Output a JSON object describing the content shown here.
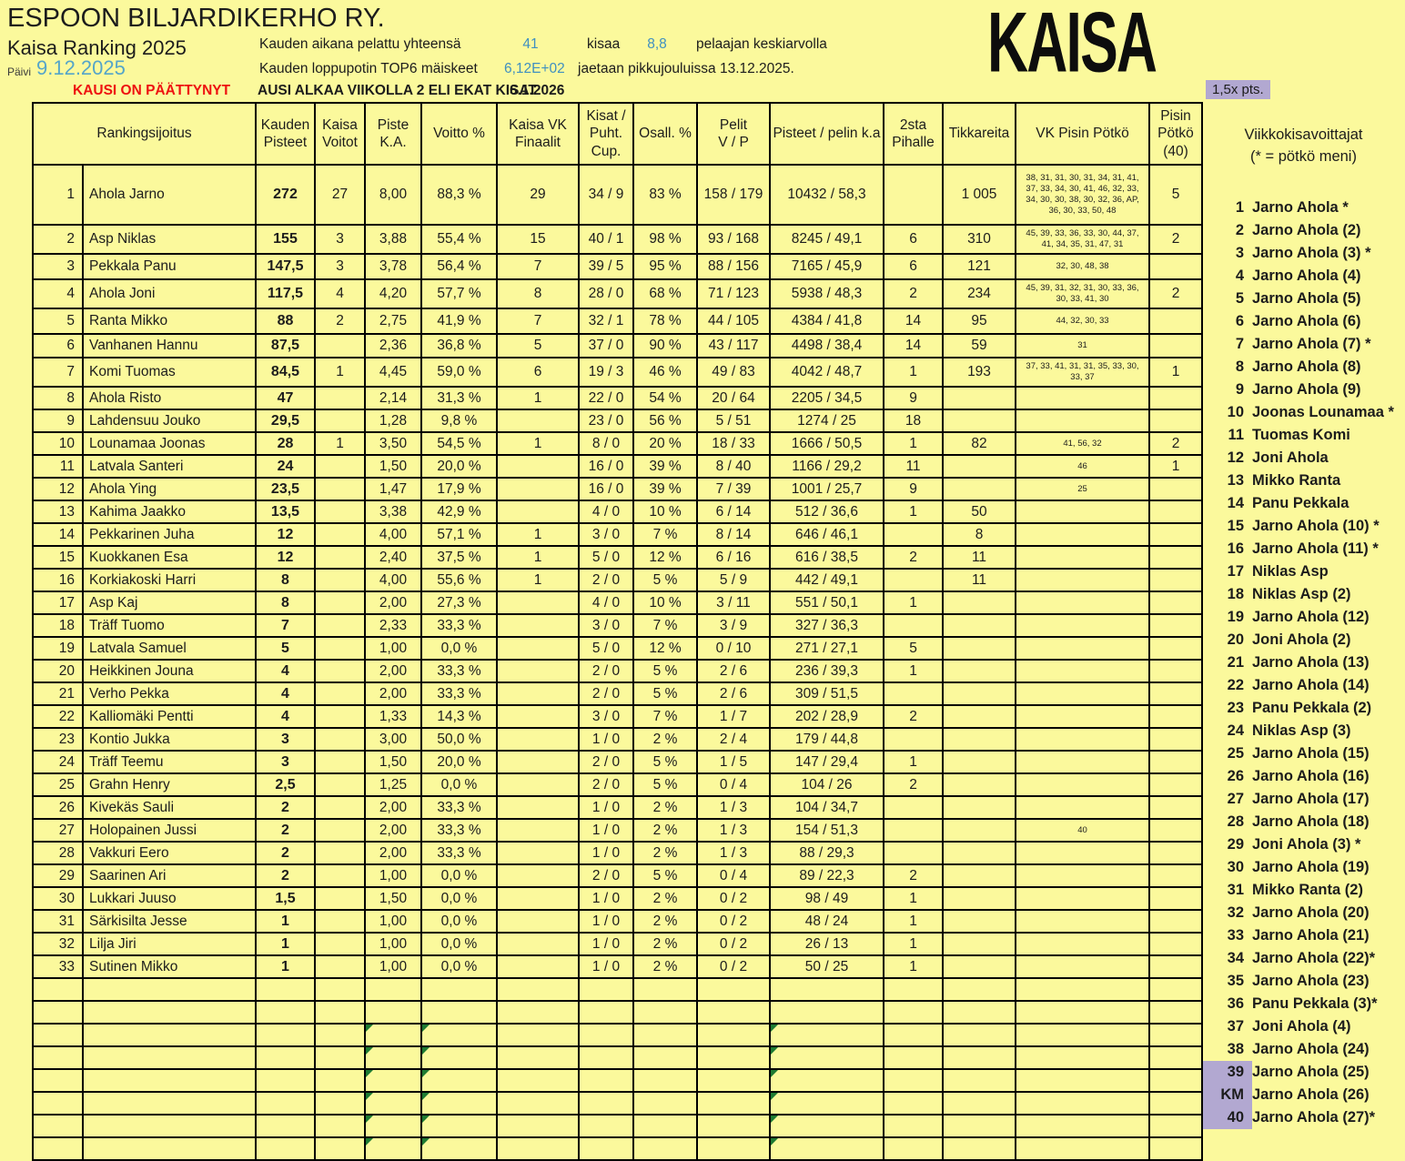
{
  "header": {
    "club": "ESPOON BILJARDIKERHO RY.",
    "subtitle": "Kaisa Ranking 2025",
    "date_label": "Päivi",
    "date_value": "9.12.2025",
    "stat1_label": "Kauden aikana pelattu yhteensä",
    "stat1_value": "41",
    "stat1_unit": "kisaa",
    "stat1_value2": "8,8",
    "stat1_unit2": "pelaajan keskiarvolla",
    "stat2_label": "Kauden loppupotin TOP6 mäiskeet",
    "stat2_value": "6,12E+02",
    "stat2_note": "jaetaan pikkujouluissa 13.12.2025.",
    "season_ended": "KAUSI ON PÄÄTTYNYT",
    "season_next": "AUSI ALKAA VIIKOLLA 2 ELI EKAT KISAT",
    "season_next_date": "6.1.2026",
    "logo": "KAISA",
    "points_badge": "1,5x pts."
  },
  "table": {
    "headers": [
      "Rankingsijoitus",
      "Kauden\nPisteet",
      "Kaisa\nVoitot",
      "Piste\nK.A.",
      "Voitto %",
      "Kaisa VK\nFinaalit",
      "Kisat /\nPuht.\nCup.",
      "Osall.  %",
      "Pelit\nV / P",
      "Pisteet / pelin k.a",
      "2sta\nPihalle",
      "Tikkareita",
      "VK Pisin Pötkö",
      "Pisin\nPötkö\n(40)"
    ],
    "rows": [
      [
        "1",
        "Ahola Jarno",
        "272",
        "27",
        "8,00",
        "88,3 %",
        "29",
        "34 / 9",
        "83 %",
        "158 / 179",
        "10432 / 58,3",
        "",
        "1 005",
        "38, 31, 31, 30, 31, 34, 31, 41, 37, 33, 34, 30, 41, 46, 32, 33, 34, 30, 30, 38, 30, 32, 36, AP, 36, 30, 33, 50, 48",
        "5"
      ],
      [
        "2",
        "Asp Niklas",
        "155",
        "3",
        "3,88",
        "55,4 %",
        "15",
        "40 / 1",
        "98 %",
        "93 / 168",
        "8245 / 49,1",
        "6",
        "310",
        "45, 39, 33, 36, 33, 30, 44, 37, 41, 34, 35, 31, 47, 31",
        "2"
      ],
      [
        "3",
        "Pekkala Panu",
        "147,5",
        "3",
        "3,78",
        "56,4 %",
        "7",
        "39 / 5",
        "95 %",
        "88 / 156",
        "7165 / 45,9",
        "6",
        "121",
        "32, 30, 48, 38",
        ""
      ],
      [
        "4",
        "Ahola Joni",
        "117,5",
        "4",
        "4,20",
        "57,7 %",
        "8",
        "28 / 0",
        "68 %",
        "71 / 123",
        "5938 / 48,3",
        "2",
        "234",
        "45, 39, 31, 32, 31, 30, 33, 36, 30, 33, 41, 30",
        "2"
      ],
      [
        "5",
        "Ranta Mikko",
        "88",
        "2",
        "2,75",
        "41,9 %",
        "7",
        "32 / 1",
        "78 %",
        "44 / 105",
        "4384 / 41,8",
        "14",
        "95",
        "44, 32, 30, 33",
        ""
      ],
      [
        "6",
        "Vanhanen Hannu",
        "87,5",
        "",
        "2,36",
        "36,8 %",
        "5",
        "37 / 0",
        "90 %",
        "43 / 117",
        "4498 / 38,4",
        "14",
        "59",
        "31",
        ""
      ],
      [
        "7",
        "Komi Tuomas",
        "84,5",
        "1",
        "4,45",
        "59,0 %",
        "6",
        "19 / 3",
        "46 %",
        "49 / 83",
        "4042 / 48,7",
        "1",
        "193",
        "37, 33, 41, 31, 31, 35, 33, 30, 33, 37",
        "1"
      ],
      [
        "8",
        "Ahola Risto",
        "47",
        "",
        "2,14",
        "31,3 %",
        "1",
        "22 / 0",
        "54 %",
        "20 / 64",
        "2205 / 34,5",
        "9",
        "",
        "",
        ""
      ],
      [
        "9",
        "Lahdensuu Jouko",
        "29,5",
        "",
        "1,28",
        "9,8 %",
        "",
        "23 / 0",
        "56 %",
        "5 / 51",
        "1274 / 25",
        "18",
        "",
        "",
        ""
      ],
      [
        "10",
        "Lounamaa Joonas",
        "28",
        "1",
        "3,50",
        "54,5 %",
        "1",
        "8 / 0",
        "20 %",
        "18 / 33",
        "1666 / 50,5",
        "1",
        "82",
        "41, 56, 32",
        "2"
      ],
      [
        "11",
        "Latvala Santeri",
        "24",
        "",
        "1,50",
        "20,0 %",
        "",
        "16 / 0",
        "39 %",
        "8 / 40",
        "1166 / 29,2",
        "11",
        "",
        "46",
        "1"
      ],
      [
        "12",
        "Ahola Ying",
        "23,5",
        "",
        "1,47",
        "17,9 %",
        "",
        "16 / 0",
        "39 %",
        "7 / 39",
        "1001 / 25,7",
        "9",
        "",
        "25",
        ""
      ],
      [
        "13",
        "Kahima Jaakko",
        "13,5",
        "",
        "3,38",
        "42,9 %",
        "",
        "4 / 0",
        "10 %",
        "6 / 14",
        "512 / 36,6",
        "1",
        "50",
        "",
        ""
      ],
      [
        "14",
        "Pekkarinen Juha",
        "12",
        "",
        "4,00",
        "57,1 %",
        "1",
        "3 / 0",
        "7 %",
        "8 / 14",
        "646 / 46,1",
        "",
        "8",
        "",
        ""
      ],
      [
        "15",
        "Kuokkanen Esa",
        "12",
        "",
        "2,40",
        "37,5 %",
        "1",
        "5 / 0",
        "12 %",
        "6 / 16",
        "616 / 38,5",
        "2",
        "11",
        "",
        ""
      ],
      [
        "16",
        "Korkiakoski Harri",
        "8",
        "",
        "4,00",
        "55,6 %",
        "1",
        "2 / 0",
        "5 %",
        "5 / 9",
        "442 / 49,1",
        "",
        "11",
        "",
        ""
      ],
      [
        "17",
        "Asp Kaj",
        "8",
        "",
        "2,00",
        "27,3 %",
        "",
        "4 / 0",
        "10 %",
        "3 / 11",
        "551 / 50,1",
        "1",
        "",
        "",
        ""
      ],
      [
        "18",
        "Träff Tuomo",
        "7",
        "",
        "2,33",
        "33,3 %",
        "",
        "3 / 0",
        "7 %",
        "3 / 9",
        "327 / 36,3",
        "",
        "",
        "",
        ""
      ],
      [
        "19",
        "Latvala Samuel",
        "5",
        "",
        "1,00",
        "0,0 %",
        "",
        "5 / 0",
        "12 %",
        "0 / 10",
        "271 / 27,1",
        "5",
        "",
        "",
        ""
      ],
      [
        "20",
        "Heikkinen Jouna",
        "4",
        "",
        "2,00",
        "33,3 %",
        "",
        "2 / 0",
        "5 %",
        "2 / 6",
        "236 / 39,3",
        "1",
        "",
        "",
        ""
      ],
      [
        "21",
        "Verho Pekka",
        "4",
        "",
        "2,00",
        "33,3 %",
        "",
        "2 / 0",
        "5 %",
        "2 / 6",
        "309 / 51,5",
        "",
        "",
        "",
        ""
      ],
      [
        "22",
        "Kalliomäki Pentti",
        "4",
        "",
        "1,33",
        "14,3 %",
        "",
        "3 / 0",
        "7 %",
        "1 / 7",
        "202 / 28,9",
        "2",
        "",
        "",
        ""
      ],
      [
        "23",
        "Kontio Jukka",
        "3",
        "",
        "3,00",
        "50,0 %",
        "",
        "1 / 0",
        "2 %",
        "2 / 4",
        "179 / 44,8",
        "",
        "",
        "",
        ""
      ],
      [
        "24",
        "Träff Teemu",
        "3",
        "",
        "1,50",
        "20,0 %",
        "",
        "2 / 0",
        "5 %",
        "1 / 5",
        "147 / 29,4",
        "1",
        "",
        "",
        ""
      ],
      [
        "25",
        "Grahn Henry",
        "2,5",
        "",
        "1,25",
        "0,0 %",
        "",
        "2 / 0",
        "5 %",
        "0 / 4",
        "104 / 26",
        "2",
        "",
        "",
        ""
      ],
      [
        "26",
        "Kivekäs Sauli",
        "2",
        "",
        "2,00",
        "33,3 %",
        "",
        "1 / 0",
        "2 %",
        "1 / 3",
        "104 / 34,7",
        "",
        "",
        "",
        ""
      ],
      [
        "27",
        "Holopainen Jussi",
        "2",
        "",
        "2,00",
        "33,3 %",
        "",
        "1 / 0",
        "2 %",
        "1 / 3",
        "154 / 51,3",
        "",
        "",
        "40",
        ""
      ],
      [
        "28",
        "Vakkuri Eero",
        "2",
        "",
        "2,00",
        "33,3 %",
        "",
        "1 / 0",
        "2 %",
        "1 / 3",
        "88 / 29,3",
        "",
        "",
        "",
        ""
      ],
      [
        "29",
        "Saarinen Ari",
        "2",
        "",
        "1,00",
        "0,0 %",
        "",
        "2 / 0",
        "5 %",
        "0 / 4",
        "89 / 22,3",
        "2",
        "",
        "",
        ""
      ],
      [
        "30",
        "Lukkari Juuso",
        "1,5",
        "",
        "1,50",
        "0,0 %",
        "",
        "1 / 0",
        "2 %",
        "0 / 2",
        "98 / 49",
        "1",
        "",
        "",
        ""
      ],
      [
        "31",
        "Särkisilta Jesse",
        "1",
        "",
        "1,00",
        "0,0 %",
        "",
        "1 / 0",
        "2 %",
        "0 / 2",
        "48 / 24",
        "1",
        "",
        "",
        ""
      ],
      [
        "32",
        "Lilja Jiri",
        "1",
        "",
        "1,00",
        "0,0 %",
        "",
        "1 / 0",
        "2 %",
        "0 / 2",
        "26 / 13",
        "1",
        "",
        "",
        ""
      ],
      [
        "33",
        "Sutinen Mikko",
        "1",
        "",
        "1,00",
        "0,0 %",
        "",
        "1 / 0",
        "2 %",
        "0 / 2",
        "50 / 25",
        "1",
        "",
        "",
        ""
      ]
    ],
    "empty_rows": 8,
    "error_marker_rows": [
      3,
      4,
      5,
      6,
      7,
      8
    ],
    "error_marker_cols": [
      "piste-ka",
      "voitto-pct",
      "pisteet-pelin"
    ]
  },
  "winners": {
    "title": "Viikkokisavoittajat\n(* = pötkö meni)",
    "items": [
      {
        "num": "1",
        "name": "Jarno Ahola *",
        "hl": false
      },
      {
        "num": "2",
        "name": "Jarno Ahola (2)",
        "hl": false
      },
      {
        "num": "3",
        "name": "Jarno Ahola (3) *",
        "hl": false
      },
      {
        "num": "4",
        "name": "Jarno Ahola (4)",
        "hl": false
      },
      {
        "num": "5",
        "name": "Jarno Ahola (5)",
        "hl": false
      },
      {
        "num": "6",
        "name": "Jarno Ahola (6)",
        "hl": false
      },
      {
        "num": "7",
        "name": "Jarno Ahola (7) *",
        "hl": false
      },
      {
        "num": "8",
        "name": "Jarno Ahola (8)",
        "hl": false
      },
      {
        "num": "9",
        "name": "Jarno Ahola (9)",
        "hl": false
      },
      {
        "num": "10",
        "name": "Joonas Lounamaa *",
        "hl": false
      },
      {
        "num": "11",
        "name": "Tuomas Komi",
        "hl": false
      },
      {
        "num": "12",
        "name": "Joni Ahola",
        "hl": false
      },
      {
        "num": "13",
        "name": "Mikko Ranta",
        "hl": false
      },
      {
        "num": "14",
        "name": "Panu Pekkala",
        "hl": false
      },
      {
        "num": "15",
        "name": "Jarno Ahola (10) *",
        "hl": false
      },
      {
        "num": "16",
        "name": "Jarno Ahola (11) *",
        "hl": false
      },
      {
        "num": "17",
        "name": "Niklas Asp",
        "hl": false
      },
      {
        "num": "18",
        "name": "Niklas Asp (2)",
        "hl": false
      },
      {
        "num": "19",
        "name": "Jarno Ahola (12)",
        "hl": false
      },
      {
        "num": "20",
        "name": "Joni Ahola (2)",
        "hl": false
      },
      {
        "num": "21",
        "name": "Jarno Ahola (13)",
        "hl": false
      },
      {
        "num": "22",
        "name": "Jarno Ahola (14)",
        "hl": false
      },
      {
        "num": "23",
        "name": "Panu Pekkala (2)",
        "hl": false
      },
      {
        "num": "24",
        "name": "Niklas Asp (3)",
        "hl": false
      },
      {
        "num": "25",
        "name": "Jarno Ahola (15)",
        "hl": false
      },
      {
        "num": "26",
        "name": "Jarno Ahola (16)",
        "hl": false
      },
      {
        "num": "27",
        "name": "Jarno Ahola (17)",
        "hl": false
      },
      {
        "num": "28",
        "name": "Jarno Ahola (18)",
        "hl": false
      },
      {
        "num": "29",
        "name": "Joni Ahola (3) *",
        "hl": false
      },
      {
        "num": "30",
        "name": "Jarno Ahola (19)",
        "hl": false
      },
      {
        "num": "31",
        "name": "Mikko Ranta (2)",
        "hl": false
      },
      {
        "num": "32",
        "name": "Jarno Ahola (20)",
        "hl": false
      },
      {
        "num": "33",
        "name": "Jarno Ahola (21)",
        "hl": false
      },
      {
        "num": "34",
        "name": "Jarno Ahola (22)*",
        "hl": false
      },
      {
        "num": "35",
        "name": "Jarno Ahola (23)",
        "hl": false
      },
      {
        "num": "36",
        "name": "Panu Pekkala (3)*",
        "hl": false
      },
      {
        "num": "37",
        "name": "Joni Ahola (4)",
        "hl": false
      },
      {
        "num": "38",
        "name": "Jarno Ahola (24)",
        "hl": false
      },
      {
        "num": "39",
        "name": "Jarno Ahola (25)",
        "hl": true
      },
      {
        "num": "KM",
        "name": "Jarno Ahola (26)",
        "hl": true
      },
      {
        "num": "40",
        "name": "Jarno Ahola (27)*",
        "hl": true
      }
    ]
  }
}
